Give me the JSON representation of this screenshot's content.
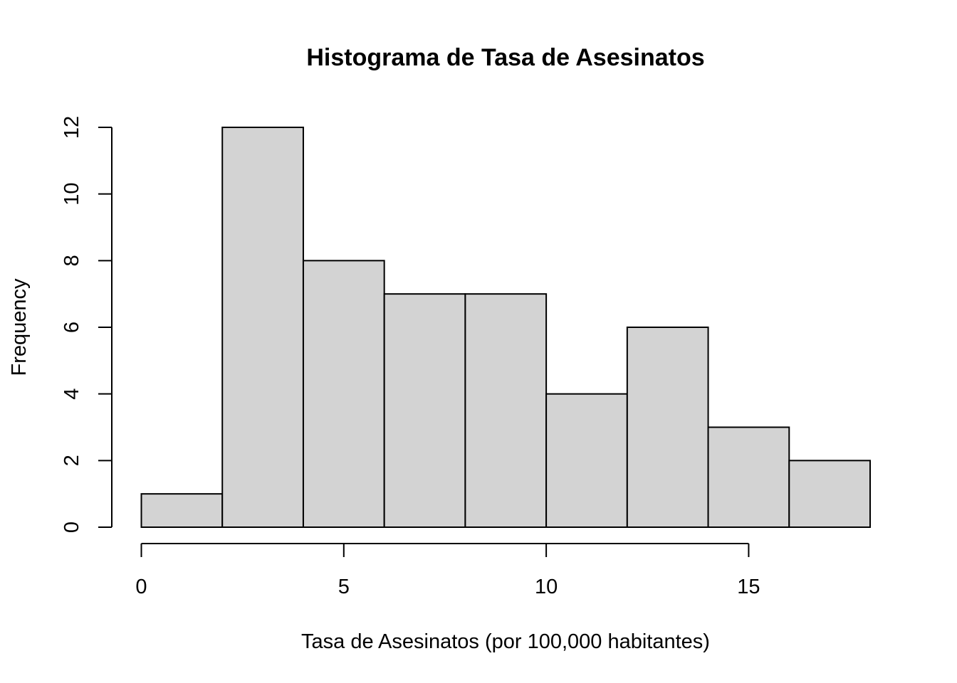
{
  "chart_data": {
    "type": "bar",
    "title": "Histograma de Tasa de Asesinatos",
    "xlabel": "Tasa de Asesinatos (por 100,000 habitantes)",
    "ylabel": "Frequency",
    "bins": [
      {
        "from": 0,
        "to": 2,
        "count": 1
      },
      {
        "from": 2,
        "to": 4,
        "count": 12
      },
      {
        "from": 4,
        "to": 6,
        "count": 8
      },
      {
        "from": 6,
        "to": 8,
        "count": 7
      },
      {
        "from": 8,
        "to": 10,
        "count": 7
      },
      {
        "from": 10,
        "to": 12,
        "count": 4
      },
      {
        "from": 12,
        "to": 14,
        "count": 6
      },
      {
        "from": 14,
        "to": 16,
        "count": 3
      },
      {
        "from": 16,
        "to": 18,
        "count": 2
      }
    ],
    "xticks": [
      0,
      5,
      10,
      15
    ],
    "yticks": [
      0,
      2,
      4,
      6,
      8,
      10,
      12
    ],
    "xlim": [
      0,
      18
    ],
    "ylim": [
      0,
      12
    ],
    "bar_color": "#d3d3d3",
    "grid": false
  }
}
